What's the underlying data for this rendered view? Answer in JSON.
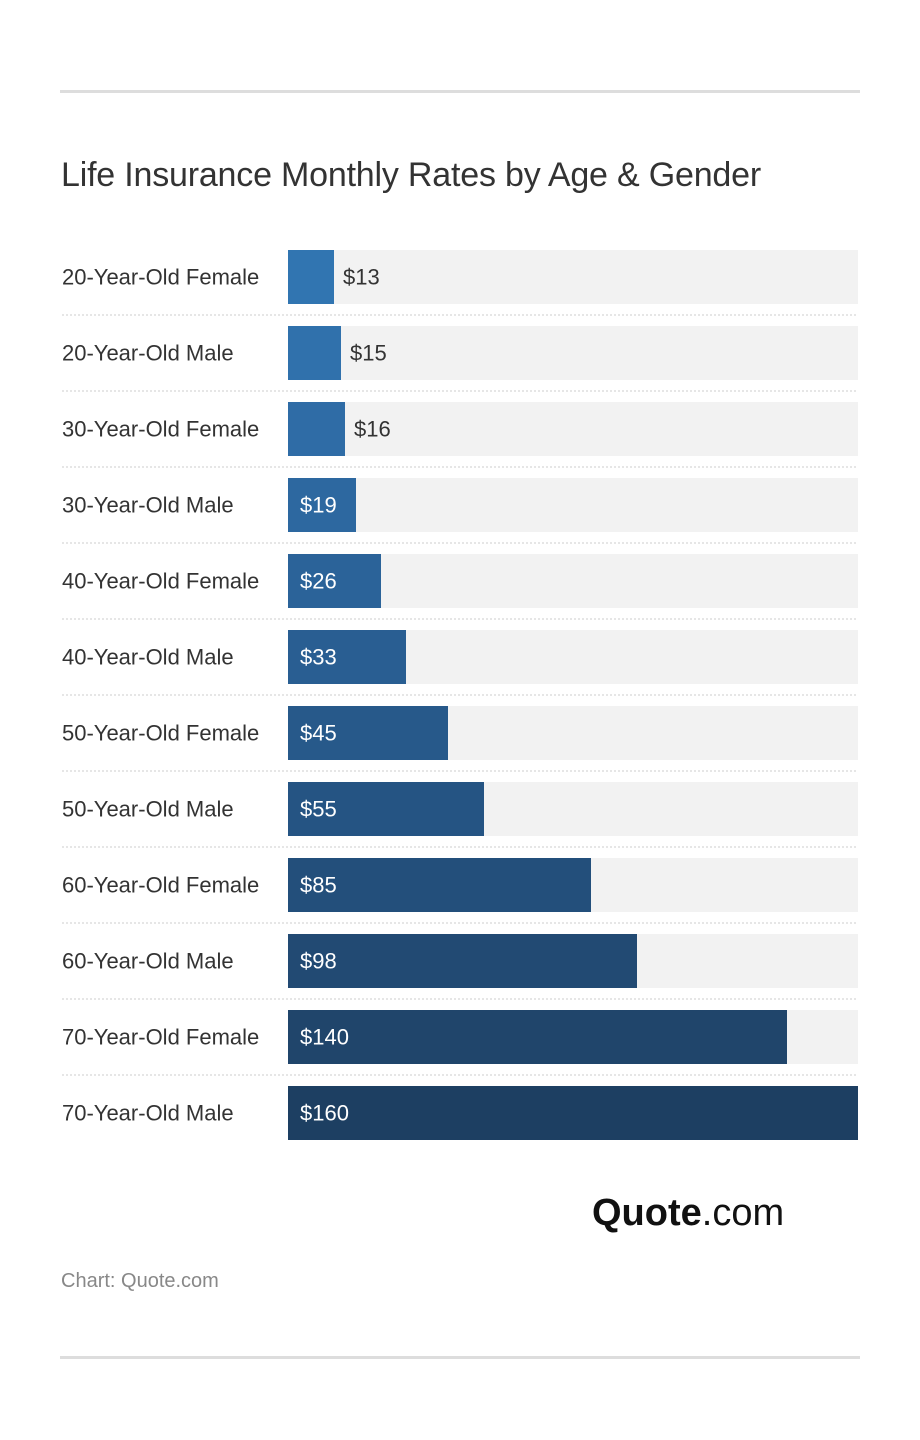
{
  "chart_data": {
    "type": "bar",
    "orientation": "horizontal",
    "title": "Life Insurance Monthly Rates by Age & Gender",
    "categories": [
      "20-Year-Old Female",
      "20-Year-Old Male",
      "30-Year-Old Female",
      "30-Year-Old Male",
      "40-Year-Old Female",
      "40-Year-Old Male",
      "50-Year-Old Female",
      "50-Year-Old Male",
      "60-Year-Old Female",
      "60-Year-Old Male",
      "70-Year-Old Female",
      "70-Year-Old Male"
    ],
    "values": [
      13,
      15,
      16,
      19,
      26,
      33,
      45,
      55,
      85,
      98,
      140,
      160
    ],
    "value_labels": [
      "$13",
      "$15",
      "$16",
      "$19",
      "$26",
      "$33",
      "$45",
      "$55",
      "$85",
      "$98",
      "$140",
      "$160"
    ],
    "xlim": [
      0,
      160
    ],
    "colors": [
      "#3175b1",
      "#3071ac",
      "#2f6ca6",
      "#2d68a0",
      "#2b6399",
      "#295e92",
      "#27598a",
      "#255483",
      "#234f7b",
      "#224a73",
      "#20456b",
      "#1d3f62"
    ],
    "track_color": "#f2f2f2",
    "xlabel": "",
    "ylabel": ""
  },
  "brand": {
    "name": "Quote",
    "tld": ".com"
  },
  "source": "Chart: Quote.com"
}
